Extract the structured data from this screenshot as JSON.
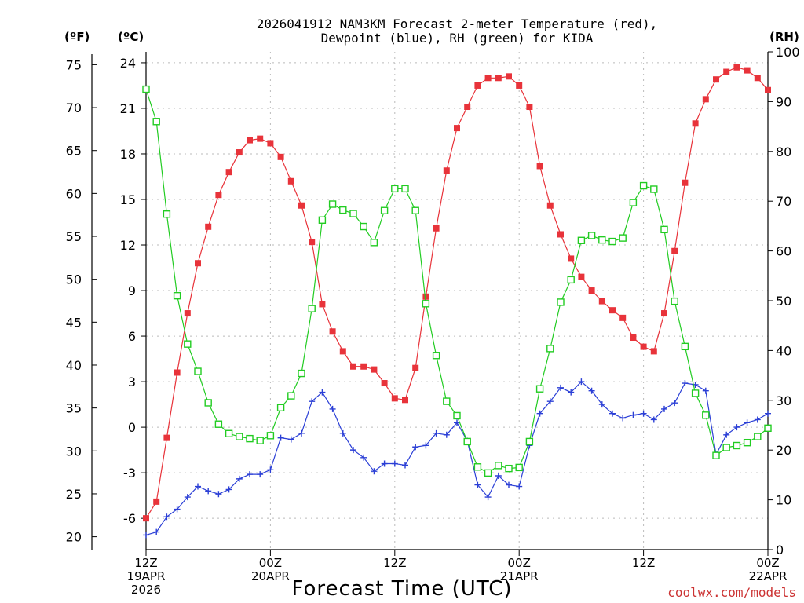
{
  "chart_data": {
    "type": "line",
    "title_line1": "2026041912 NAM3KM Forecast 2-meter Temperature (red),",
    "title_line2": "Dewpoint (blue), RH (green) for KIDA",
    "xlabel": "Forecast Time (UTC)",
    "credit": "coolwx.com/models",
    "units": {
      "fahrenheit": "(ºF)",
      "celsius": "(ºC)",
      "rh": "(RH)"
    },
    "axes": {
      "fahrenheit": {
        "ticks": [
          "20",
          "25",
          "30",
          "35",
          "40",
          "45",
          "50",
          "55",
          "60",
          "65",
          "70",
          "75"
        ],
        "range": [
          18.5,
          76.5
        ]
      },
      "celsius": {
        "ticks": [
          "-6",
          "-3",
          "0",
          "3",
          "6",
          "9",
          "12",
          "15",
          "18",
          "21",
          "24"
        ],
        "range": [
          -8.06,
          24.72
        ]
      },
      "rh": {
        "ticks": [
          "0",
          "10",
          "20",
          "30",
          "40",
          "50",
          "60",
          "70",
          "80",
          "90",
          "100"
        ],
        "range": [
          0,
          100
        ]
      },
      "x": {
        "range_hours": [
          0,
          60
        ],
        "ticks": [
          {
            "hour": 0,
            "lines": [
              "12Z",
              "19APR",
              "2026"
            ]
          },
          {
            "hour": 12,
            "lines": [
              "00Z",
              "20APR"
            ]
          },
          {
            "hour": 24,
            "lines": [
              "12Z"
            ]
          },
          {
            "hour": 36,
            "lines": [
              "00Z",
              "21APR"
            ]
          },
          {
            "hour": 48,
            "lines": [
              "12Z"
            ]
          },
          {
            "hour": 60,
            "lines": [
              "00Z",
              "22APR"
            ]
          }
        ]
      }
    },
    "colors": {
      "temperature": "#e8333a",
      "dewpoint": "#2b3fd6",
      "rh": "#22cc22",
      "grid": "#bbbbbb",
      "credit": "#cc3333"
    },
    "series": [
      {
        "name": "Temperature (ºC)",
        "axis": "celsius",
        "marker": "filled-square",
        "x": [
          0,
          1,
          2,
          3,
          4,
          5,
          6,
          7,
          8,
          9,
          10,
          11,
          12,
          13,
          14,
          15,
          16,
          17,
          18,
          19,
          20,
          21,
          22,
          23,
          24,
          25,
          26,
          27,
          28,
          29,
          30,
          31,
          32,
          33,
          34,
          35,
          36,
          37,
          38,
          39,
          40,
          41,
          42,
          43,
          44,
          45,
          46,
          47,
          48,
          49,
          50,
          51,
          52,
          53,
          54,
          55,
          56,
          57,
          58,
          59,
          60
        ],
        "values": [
          -6.0,
          -4.9,
          -0.7,
          3.6,
          7.5,
          10.8,
          13.2,
          15.3,
          16.8,
          18.1,
          18.9,
          19.0,
          18.7,
          17.8,
          16.2,
          14.6,
          12.2,
          8.1,
          6.3,
          5.0,
          4.0,
          4.0,
          3.8,
          2.9,
          1.9,
          1.8,
          3.9,
          8.6,
          13.1,
          16.9,
          19.7,
          21.1,
          22.5,
          23.0,
          23.0,
          23.1,
          22.5,
          21.1,
          17.2,
          14.6,
          12.7,
          11.1,
          9.9,
          9.0,
          8.3,
          7.7,
          7.2,
          5.9,
          5.3,
          5.0,
          7.5,
          11.6,
          16.1,
          20.0,
          21.6,
          22.9,
          23.4,
          23.7,
          23.5,
          23.0,
          22.2
        ]
      },
      {
        "name": "Dewpoint (ºC)",
        "axis": "celsius",
        "marker": "plus",
        "x": [
          0,
          1,
          2,
          3,
          4,
          5,
          6,
          7,
          8,
          9,
          10,
          11,
          12,
          13,
          14,
          15,
          16,
          17,
          18,
          19,
          20,
          21,
          22,
          23,
          24,
          25,
          26,
          27,
          28,
          29,
          30,
          31,
          32,
          33,
          34,
          35,
          36,
          37,
          38,
          39,
          40,
          41,
          42,
          43,
          44,
          45,
          46,
          47,
          48,
          49,
          50,
          51,
          52,
          53,
          54,
          55,
          56,
          57,
          58,
          59,
          60
        ],
        "values": [
          -7.1,
          -6.9,
          -5.9,
          -5.4,
          -4.6,
          -3.9,
          -4.2,
          -4.4,
          -4.1,
          -3.4,
          -3.1,
          -3.1,
          -2.8,
          -0.7,
          -0.8,
          -0.4,
          1.7,
          2.3,
          1.2,
          -0.4,
          -1.5,
          -2.0,
          -2.9,
          -2.4,
          -2.4,
          -2.5,
          -1.3,
          -1.2,
          -0.4,
          -0.5,
          0.3,
          -0.9,
          -3.8,
          -4.6,
          -3.2,
          -3.8,
          -3.9,
          -1.2,
          0.9,
          1.7,
          2.6,
          2.3,
          3.0,
          2.4,
          1.5,
          0.9,
          0.6,
          0.8,
          0.9,
          0.5,
          1.2,
          1.6,
          2.9,
          2.8,
          2.4,
          -1.8,
          -0.5,
          0.0,
          0.3,
          0.5,
          0.9
        ]
      },
      {
        "name": "RH (%)",
        "axis": "rh",
        "marker": "open-square",
        "x": [
          0,
          1,
          2,
          3,
          4,
          5,
          6,
          7,
          8,
          9,
          10,
          11,
          12,
          13,
          14,
          15,
          16,
          17,
          18,
          19,
          20,
          21,
          22,
          23,
          24,
          25,
          26,
          27,
          28,
          29,
          30,
          31,
          32,
          33,
          34,
          35,
          36,
          37,
          38,
          39,
          40,
          41,
          42,
          43,
          44,
          45,
          46,
          47,
          48,
          49,
          50,
          51,
          52,
          53,
          54,
          55,
          56,
          57,
          58,
          59,
          60
        ],
        "values": [
          92.5,
          86.0,
          67.4,
          51.0,
          41.3,
          35.8,
          29.5,
          25.2,
          23.3,
          22.7,
          22.3,
          21.9,
          22.9,
          28.5,
          30.9,
          35.4,
          48.4,
          66.2,
          69.4,
          68.2,
          67.5,
          64.9,
          61.7,
          68.1,
          72.5,
          72.5,
          68.1,
          49.4,
          39.0,
          29.8,
          26.9,
          21.7,
          16.6,
          15.4,
          16.9,
          16.3,
          16.5,
          21.7,
          32.3,
          40.4,
          49.7,
          54.2,
          62.1,
          63.1,
          62.2,
          61.9,
          62.6,
          69.7,
          73.1,
          72.4,
          64.3,
          49.9,
          40.8,
          31.4,
          27.0,
          18.9,
          20.5,
          20.9,
          21.5,
          22.7,
          24.4
        ]
      }
    ]
  }
}
